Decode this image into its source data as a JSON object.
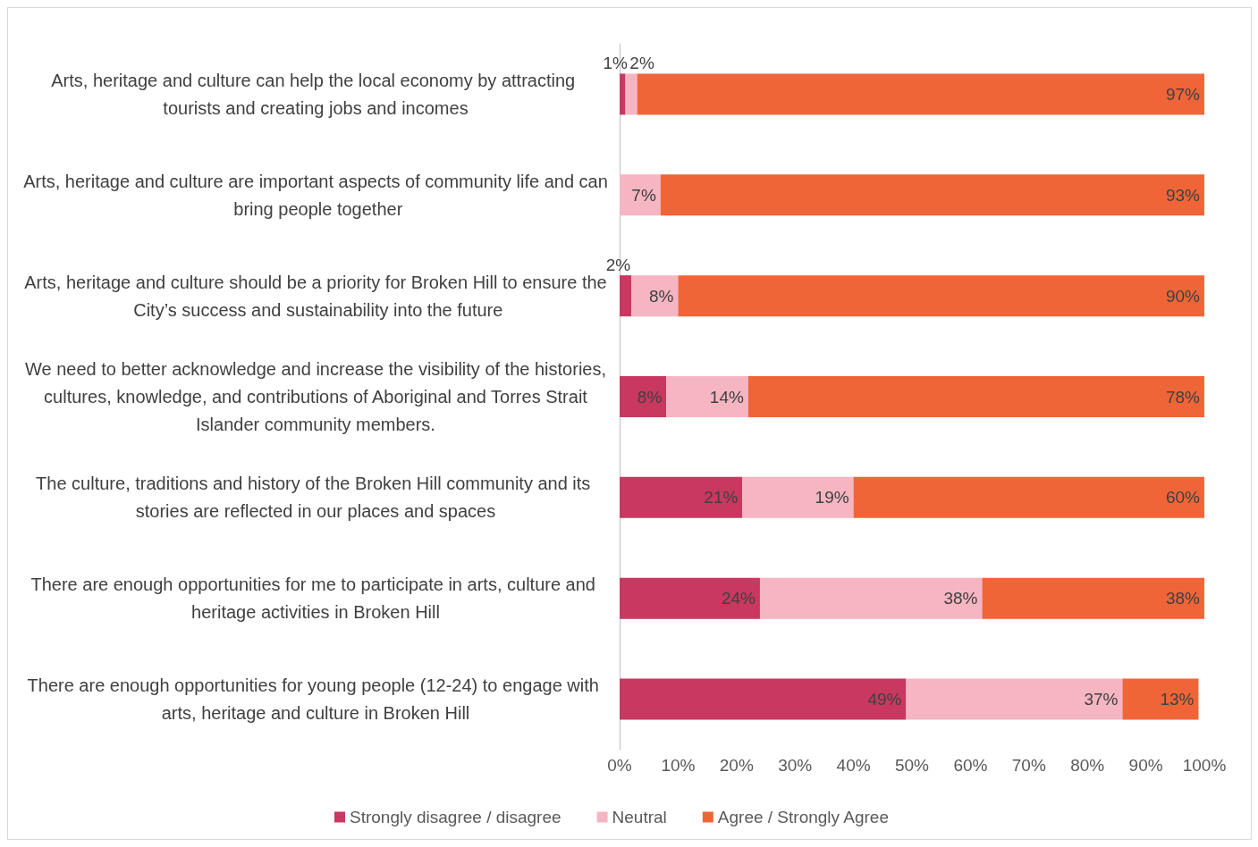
{
  "chart_data": {
    "type": "bar",
    "orientation": "horizontal",
    "stacked": true,
    "categories": [
      "Arts, heritage and culture can help the local economy by attracting tourists and creating jobs and incomes",
      "Arts, heritage and culture are important aspects of community life and can bring people together",
      "Arts, heritage and culture should be a priority for Broken Hill to ensure the City’s success and sustainability into the future",
      "We need to better acknowledge and increase the visibility of the histories, cultures, knowledge, and contributions of Aboriginal and Torres Strait Islander community members.",
      "The culture, traditions and history of the Broken Hill community and its stories are reflected in our places and spaces",
      "There are enough opportunities for me to participate in arts, culture and heritage activities in Broken Hill",
      "There are enough opportunities for young people (12-24) to engage with arts, heritage and culture in Broken Hill"
    ],
    "series": [
      {
        "name": "Strongly disagree / disagree",
        "color": "#c8385f",
        "values": [
          1,
          0,
          2,
          8,
          21,
          24,
          49
        ],
        "value_labels": [
          "1%",
          null,
          "2%",
          "8%",
          "21%",
          "24%",
          "49%"
        ]
      },
      {
        "name": "Neutral",
        "color": "#f5b5c1",
        "values": [
          2,
          7,
          8,
          14,
          19,
          38,
          37
        ],
        "value_labels": [
          "2%",
          "7%",
          "8%",
          "14%",
          "19%",
          "38%",
          "37%"
        ]
      },
      {
        "name": "Agree / Strongly Agree",
        "color": "#f06537",
        "values": [
          97,
          93,
          90,
          78,
          60,
          38,
          13
        ],
        "value_labels": [
          "97%",
          "93%",
          "90%",
          "78%",
          "60%",
          "38%",
          "13%"
        ]
      }
    ],
    "xlim": [
      0,
      100
    ],
    "xticks": [
      {
        "value": 0,
        "label": "0%"
      },
      {
        "value": 10,
        "label": "10%"
      },
      {
        "value": 20,
        "label": "20%"
      },
      {
        "value": 30,
        "label": "30%"
      },
      {
        "value": 40,
        "label": "40%"
      },
      {
        "value": 50,
        "label": "50%"
      },
      {
        "value": 60,
        "label": "60%"
      },
      {
        "value": 70,
        "label": "70%"
      },
      {
        "value": 80,
        "label": "80%"
      },
      {
        "value": 90,
        "label": "90%"
      },
      {
        "value": 100,
        "label": "100%"
      }
    ],
    "grid": false,
    "legend": "bottom"
  }
}
